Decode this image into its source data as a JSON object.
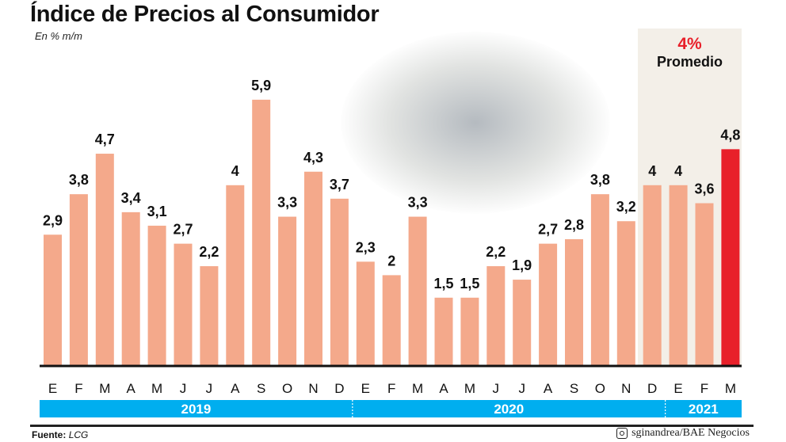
{
  "title": "Índice de Precios al Consumidor",
  "subtitle": "En % m/m",
  "highlight": {
    "value": "4%",
    "label": "Promedio"
  },
  "source": {
    "label": "Fuente:",
    "value": "LCG"
  },
  "credit": {
    "icon": "instagram-icon",
    "text": "sginandrea/BAE Negocios"
  },
  "colors": {
    "bar": "#f4a98b",
    "highlight_bar": "#e8202a",
    "year_band": "#00aeef",
    "highlight_bg": "#f3efe8"
  },
  "chart_data": {
    "type": "bar",
    "title": "Índice de Precios al Consumidor",
    "ylabel": "En % m/m",
    "categories": [
      "E",
      "F",
      "M",
      "A",
      "M",
      "J",
      "J",
      "A",
      "S",
      "O",
      "N",
      "D",
      "E",
      "F",
      "M",
      "A",
      "M",
      "J",
      "J",
      "A",
      "S",
      "O",
      "N",
      "D",
      "E",
      "F",
      "M"
    ],
    "values": [
      2.9,
      3.8,
      4.7,
      3.4,
      3.1,
      2.7,
      2.2,
      4,
      5.9,
      3.3,
      4.3,
      3.7,
      2.3,
      2,
      3.3,
      1.5,
      1.5,
      2.2,
      1.9,
      2.7,
      2.8,
      3.8,
      3.2,
      4,
      4,
      3.6,
      4.8
    ],
    "value_labels": [
      "2,9",
      "3,8",
      "4,7",
      "3,4",
      "3,1",
      "2,7",
      "2,2",
      "4",
      "5,9",
      "3,3",
      "4,3",
      "3,7",
      "2,3",
      "2",
      "3,3",
      "1,5",
      "1,5",
      "2,2",
      "1,9",
      "2,7",
      "2,8",
      "3,8",
      "3,2",
      "4",
      "4",
      "3,6",
      "4,8"
    ],
    "years": [
      {
        "label": "2019",
        "months": 12
      },
      {
        "label": "2020",
        "months": 12
      },
      {
        "label": "2021",
        "months": 3
      }
    ],
    "highlighted_index": 26,
    "ylim": [
      0,
      6
    ],
    "grid": false
  }
}
